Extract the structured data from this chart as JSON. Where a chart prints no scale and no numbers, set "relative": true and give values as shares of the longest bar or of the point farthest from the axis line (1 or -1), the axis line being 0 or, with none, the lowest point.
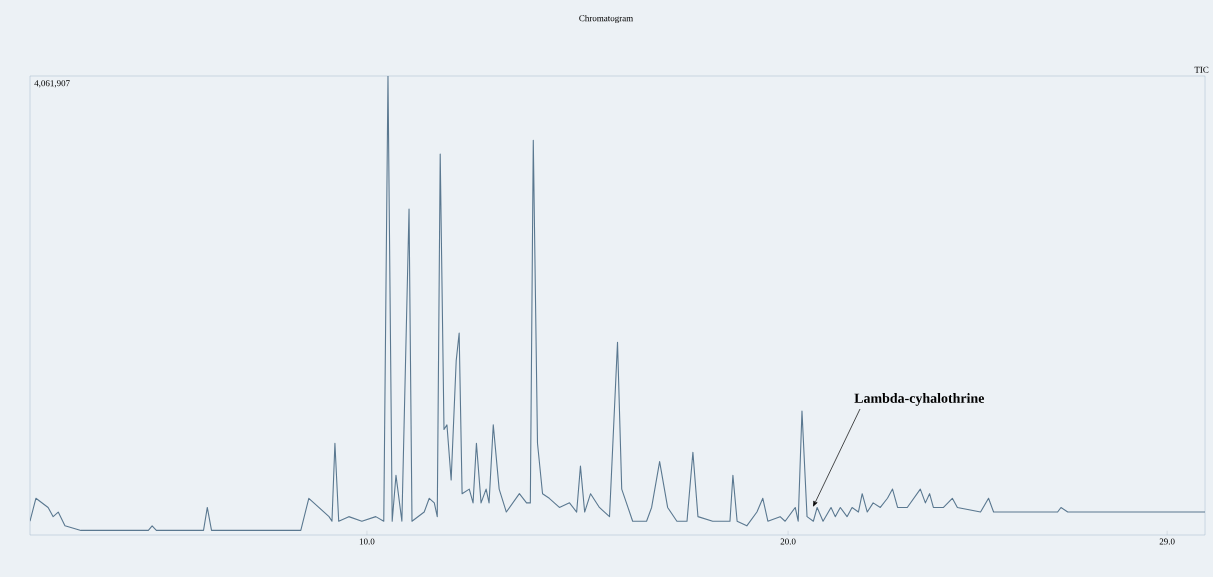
{
  "chart_data": {
    "type": "line",
    "title": "Chromatogram",
    "relative": true,
    "xlim": [
      2.0,
      29.9
    ],
    "xticks": [
      {
        "value": 10,
        "label": "10.0"
      },
      {
        "value": 20,
        "label": "20.0"
      },
      {
        "value": 29,
        "label": "29.0"
      }
    ],
    "annotations": [
      "4,061,907",
      "TIC",
      "Lambda-cyhalothrine"
    ],
    "series": [
      {
        "color": "#5a7890",
        "x": [
          2.0,
          2.14,
          2.43,
          2.55,
          2.67,
          2.83,
          3.21,
          4.81,
          4.9,
          5.0,
          6.12,
          6.21,
          6.31,
          8.43,
          8.62,
          9.1,
          9.17,
          9.24,
          9.33,
          9.57,
          9.88,
          10.21,
          10.4,
          10.5,
          10.6,
          10.69,
          10.83,
          11.0,
          11.07,
          11.36,
          11.48,
          11.6,
          11.67,
          11.74,
          11.83,
          11.9,
          12.0,
          12.12,
          12.19,
          12.26,
          12.43,
          12.52,
          12.6,
          12.71,
          12.83,
          12.9,
          13.0,
          13.14,
          13.31,
          13.62,
          13.79,
          13.88,
          13.95,
          14.05,
          14.17,
          14.33,
          14.57,
          14.81,
          14.98,
          15.07,
          15.17,
          15.31,
          15.52,
          15.76,
          15.95,
          16.05,
          16.31,
          16.64,
          16.76,
          16.95,
          17.14,
          17.36,
          17.6,
          17.74,
          17.86,
          18.21,
          18.62,
          18.69,
          18.79,
          19.02,
          19.26,
          19.4,
          19.52,
          19.81,
          19.93,
          20.17,
          20.24,
          20.33,
          20.45,
          20.6,
          20.69,
          20.83,
          21.02,
          21.12,
          21.24,
          21.4,
          21.52,
          21.67,
          21.76,
          21.88,
          22.02,
          22.19,
          22.36,
          22.48,
          22.6,
          22.83,
          23.14,
          23.26,
          23.36,
          23.45,
          23.69,
          23.9,
          24.02,
          24.57,
          24.76,
          24.88,
          26.4,
          26.48,
          26.64,
          29.9
        ],
        "values": [
          0.03,
          0.08,
          0.06,
          0.04,
          0.05,
          0.02,
          0.01,
          0.01,
          0.02,
          0.01,
          0.01,
          0.06,
          0.01,
          0.01,
          0.08,
          0.04,
          0.03,
          0.2,
          0.03,
          0.04,
          0.03,
          0.04,
          0.03,
          1,
          0.03,
          0.13,
          0.03,
          0.71,
          0.03,
          0.05,
          0.08,
          0.07,
          0.04,
          0.83,
          0.23,
          0.24,
          0.12,
          0.38,
          0.44,
          0.09,
          0.1,
          0.07,
          0.2,
          0.07,
          0.1,
          0.07,
          0.24,
          0.1,
          0.05,
          0.09,
          0.07,
          0.07,
          0.86,
          0.2,
          0.09,
          0.08,
          0.06,
          0.07,
          0.05,
          0.15,
          0.05,
          0.09,
          0.06,
          0.04,
          0.42,
          0.1,
          0.03,
          0.03,
          0.06,
          0.16,
          0.06,
          0.03,
          0.03,
          0.18,
          0.04,
          0.03,
          0.03,
          0.13,
          0.03,
          0.02,
          0.05,
          0.08,
          0.03,
          0.04,
          0.03,
          0.06,
          0.03,
          0.27,
          0.04,
          0.03,
          0.06,
          0.03,
          0.06,
          0.04,
          0.06,
          0.04,
          0.06,
          0.05,
          0.09,
          0.05,
          0.07,
          0.06,
          0.08,
          0.1,
          0.06,
          0.06,
          0.1,
          0.07,
          0.09,
          0.06,
          0.06,
          0.08,
          0.06,
          0.05,
          0.08,
          0.05,
          0.05,
          0.06,
          0.05,
          0.05
        ]
      }
    ]
  }
}
